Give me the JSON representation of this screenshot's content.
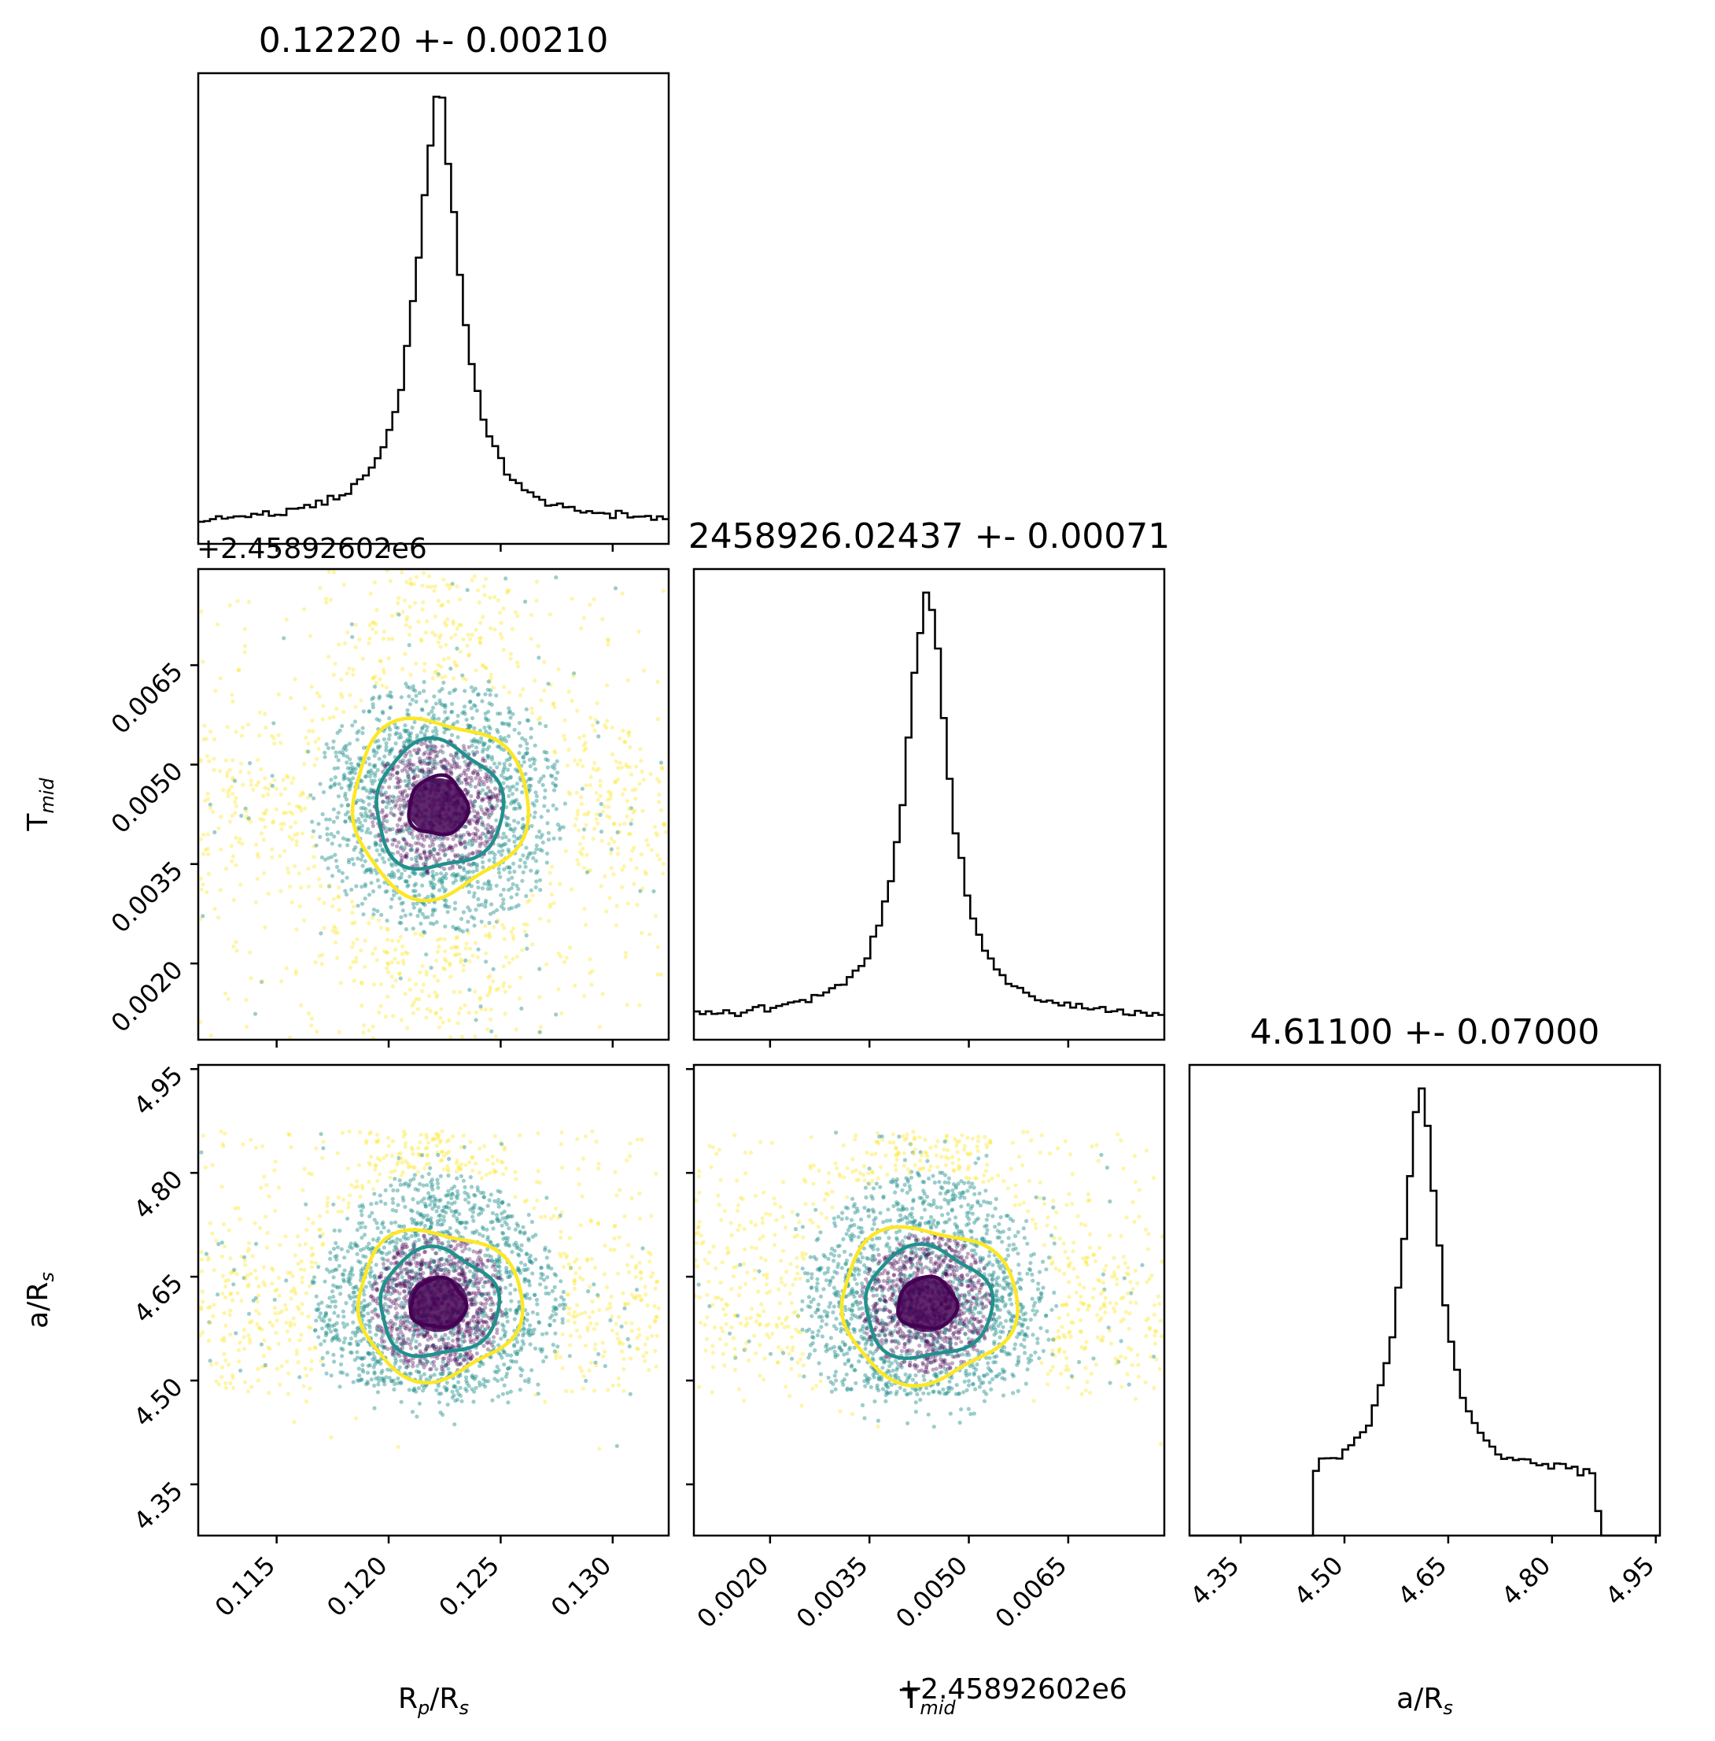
{
  "chart_data": {
    "type": "scatter",
    "titles": {
      "rp": "0.12220 +- 0.00210",
      "tmid": "2458926.02437 +- 0.00071",
      "ars": "4.61100 +- 0.07000"
    },
    "labels": {
      "rp": {
        "base": "R",
        "sub": "p",
        "tail": "/R",
        "sub2": "s"
      },
      "tmid": {
        "base": "T",
        "sub": "mid"
      },
      "ars": {
        "base": "a/R",
        "sub": "s"
      }
    },
    "offset_text": "+2.45892602e6",
    "params": {
      "rp": {
        "range": [
          0.1115,
          0.1325
        ],
        "ticks": [
          0.115,
          0.12,
          0.125,
          0.13
        ],
        "tick_labels": [
          "0.115",
          "0.120",
          "0.125",
          "0.130"
        ],
        "mean": 0.1222,
        "sigma": 0.0021
      },
      "tmid": {
        "range": [
          0.00085,
          0.00795
        ],
        "ticks": [
          0.002,
          0.0035,
          0.005,
          0.0065
        ],
        "tick_labels": [
          "0.0020",
          "0.0035",
          "0.0050",
          "0.0065"
        ],
        "mean": 0.00437,
        "sigma": 0.00071
      },
      "ars": {
        "range": [
          4.276,
          4.956
        ],
        "ticks": [
          4.35,
          4.5,
          4.65,
          4.8,
          4.95
        ],
        "tick_labels": [
          "4.35",
          "4.50",
          "4.65",
          "4.80",
          "4.95"
        ],
        "mean": 4.611,
        "sigma": 0.07
      }
    },
    "colors": {
      "level1": "#440154",
      "level2": "#21918c",
      "level3": "#fde725",
      "line": "#000000"
    },
    "levels_sigma": [
      0.6,
      1.3,
      1.8
    ]
  }
}
